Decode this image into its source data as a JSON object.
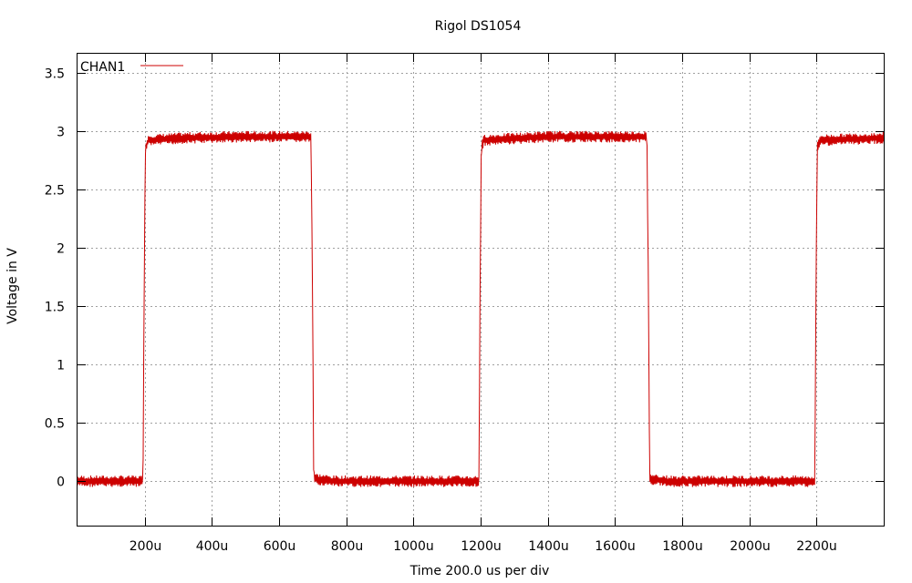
{
  "chart_data": {
    "type": "line",
    "title": "Rigol DS1054",
    "xlabel": "Time 200.0 us per div",
    "ylabel": "Voltage in V",
    "xlim": [
      0,
      2400
    ],
    "ylim": [
      -0.38,
      3.66
    ],
    "grid": true,
    "legend_position": "top-left",
    "x_ticks": [
      200,
      400,
      600,
      800,
      1000,
      1200,
      1400,
      1600,
      1800,
      2000,
      2200
    ],
    "x_tick_labels": [
      "200u",
      "400u",
      "600u",
      "800u",
      "1000u",
      "1200u",
      "1400u",
      "1600u",
      "1800u",
      "2000u",
      "2200u"
    ],
    "y_ticks": [
      0,
      0.5,
      1,
      1.5,
      2,
      2.5,
      3,
      3.5
    ],
    "y_tick_labels": [
      "0",
      "0.5",
      "1",
      "1.5",
      "2",
      "2.5",
      "3",
      "3.5"
    ],
    "series": [
      {
        "name": "CHAN1",
        "color": "#cc0000",
        "x": [
          0,
          195,
          198,
          202,
          210,
          330,
          500,
          695,
          700,
          703,
          707,
          760,
          1000,
          1195,
          1198,
          1202,
          1210,
          1400,
          1695,
          1700,
          1703,
          1707,
          1760,
          2000,
          2195,
          2198,
          2202,
          2210,
          2400
        ],
        "y": [
          0.0,
          0.0,
          1.5,
          2.85,
          2.92,
          2.94,
          2.95,
          2.95,
          1.5,
          0.05,
          0.02,
          0.0,
          0.0,
          0.0,
          1.5,
          2.85,
          2.92,
          2.95,
          2.95,
          1.5,
          0.05,
          0.02,
          0.0,
          0.0,
          0.0,
          1.5,
          2.85,
          2.92,
          2.94
        ],
        "noise_amplitude": 0.05
      }
    ]
  }
}
